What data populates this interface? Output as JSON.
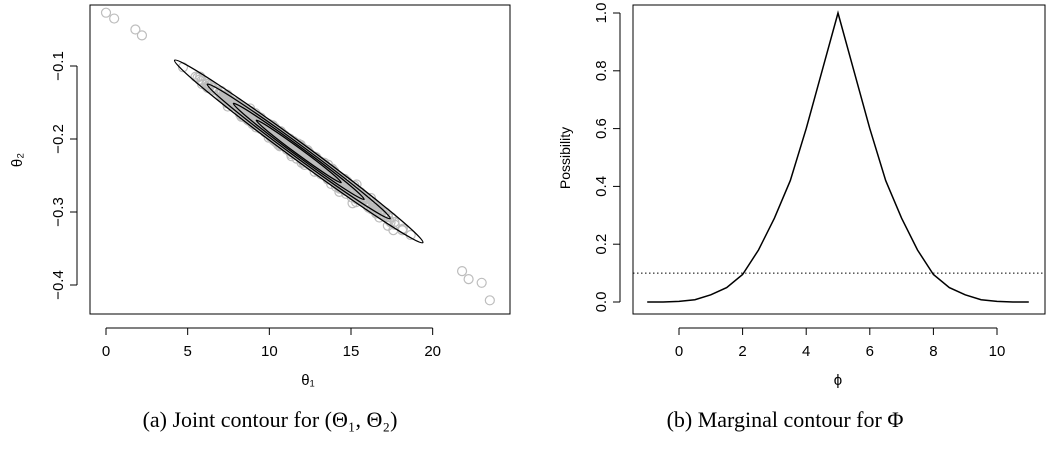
{
  "chart_data": [
    {
      "type": "scatter",
      "panel_label": "(a)",
      "caption": "Joint contour for (Θ₁, Θ₂)",
      "xlabel": "θ₁",
      "ylabel": "θ₂",
      "xlim": [
        0,
        24
      ],
      "ylim": [
        -0.43,
        -0.025
      ],
      "xticks": [
        0,
        5,
        10,
        15,
        20
      ],
      "xtick_labels": [
        "0",
        "5",
        "10",
        "15",
        "20"
      ],
      "yticks": [
        -0.1,
        -0.2,
        -0.3,
        -0.4
      ],
      "ytick_labels": [
        "−0.1",
        "−0.2",
        "−0.3",
        "−0.4"
      ],
      "point_color": "#bdbdbd",
      "contour_color": "#000000",
      "points_trend": {
        "slope": -0.01643,
        "intercept": -0.0235
      },
      "outliers": [
        [
          0.0,
          -0.027
        ],
        [
          0.5,
          -0.035
        ],
        [
          23.0,
          -0.397
        ],
        [
          23.5,
          -0.421
        ],
        [
          22.2,
          -0.392
        ],
        [
          21.8,
          -0.381
        ],
        [
          1.8,
          -0.05
        ],
        [
          2.2,
          -0.058
        ]
      ],
      "contours": [
        {
          "center": [
            11.8,
            -0.217
          ],
          "x_half_range": 7.6
        },
        {
          "center": [
            11.8,
            -0.217
          ],
          "x_half_range": 5.6
        },
        {
          "center": [
            11.8,
            -0.217
          ],
          "x_half_range": 4.0
        },
        {
          "center": [
            11.8,
            -0.217
          ],
          "x_half_range": 2.6
        }
      ]
    },
    {
      "type": "line",
      "panel_label": "(b)",
      "caption": "Marginal contour for Φ",
      "xlabel": "ϕ",
      "ylabel": "Possibility",
      "xlim": [
        -1,
        11
      ],
      "ylim": [
        0,
        1
      ],
      "xticks": [
        0,
        2,
        4,
        6,
        8,
        10
      ],
      "xtick_labels": [
        "0",
        "2",
        "4",
        "6",
        "8",
        "10"
      ],
      "yticks": [
        0,
        0.2,
        0.4,
        0.6,
        0.8,
        1.0
      ],
      "ytick_labels": [
        "0.0",
        "0.2",
        "0.4",
        "0.6",
        "0.8",
        "1.0"
      ],
      "x": [
        -1,
        -0.5,
        0,
        0.5,
        1,
        1.5,
        2,
        2.5,
        3,
        3.5,
        4,
        4.5,
        5,
        5.5,
        6,
        6.5,
        7,
        7.5,
        8,
        8.5,
        9,
        9.5,
        10,
        10.5,
        11
      ],
      "y": [
        0.0,
        0.0,
        0.002,
        0.008,
        0.025,
        0.05,
        0.095,
        0.18,
        0.29,
        0.42,
        0.6,
        0.8,
        1.0,
        0.8,
        0.6,
        0.42,
        0.29,
        0.18,
        0.095,
        0.05,
        0.025,
        0.008,
        0.002,
        0.0,
        0.0
      ],
      "threshold": 0.1,
      "line_color": "#000000"
    }
  ]
}
